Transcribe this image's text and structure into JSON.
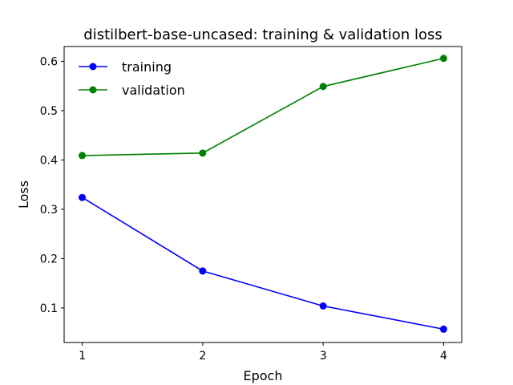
{
  "chart_data": {
    "type": "line",
    "title": "distilbert-base-uncased: training & validation loss",
    "xlabel": "Epoch",
    "ylabel": "Loss",
    "x": [
      1,
      2,
      3,
      4
    ],
    "xticks": [
      "1",
      "2",
      "3",
      "4"
    ],
    "yticks": [
      "0.1",
      "0.2",
      "0.3",
      "0.4",
      "0.5",
      "0.6"
    ],
    "ytick_values": [
      0.1,
      0.2,
      0.3,
      0.4,
      0.5,
      0.6
    ],
    "xlim": [
      0.85,
      4.15
    ],
    "ylim": [
      0.03,
      0.63
    ],
    "grid": false,
    "legend_position": "top-left",
    "series": [
      {
        "name": "training",
        "color": "#0000ff",
        "marker": "circle",
        "values": [
          0.324,
          0.175,
          0.104,
          0.057
        ]
      },
      {
        "name": "validation",
        "color": "#008000",
        "marker": "circle",
        "values": [
          0.409,
          0.414,
          0.549,
          0.606
        ]
      }
    ]
  }
}
